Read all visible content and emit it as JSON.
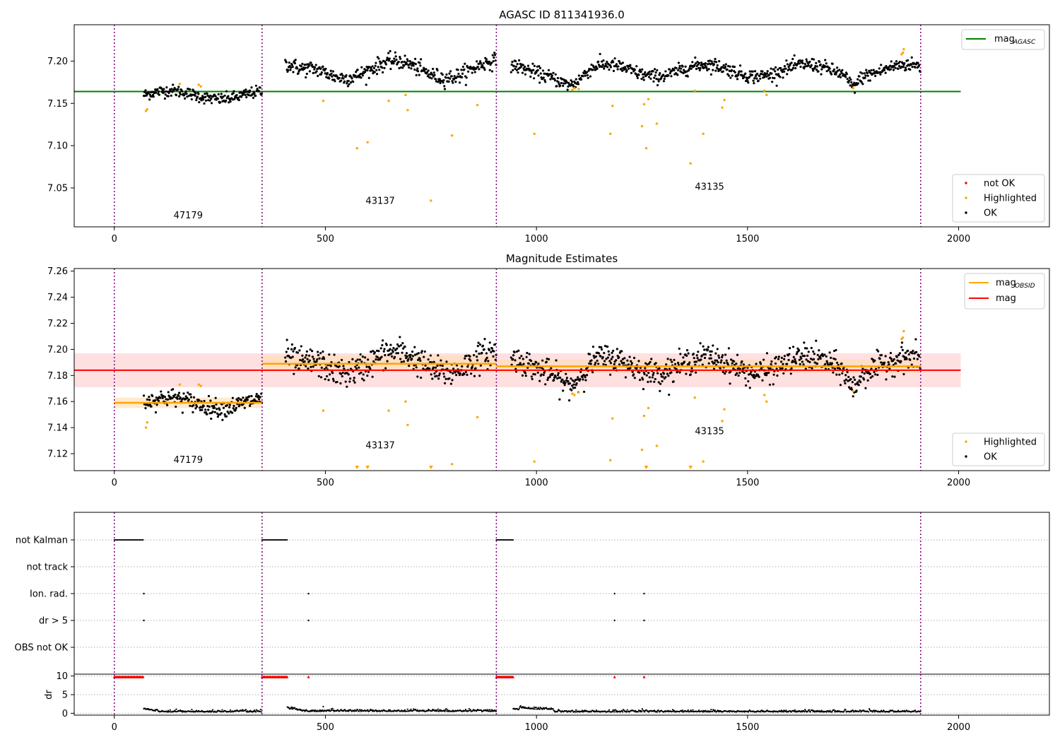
{
  "colors": {
    "ok": "#000000",
    "highlighted": "#ffa500",
    "not_ok": "#ff0000",
    "mag_agasc": "#008000",
    "mag_obsid": "#ffa500",
    "mag": "#ff0000",
    "obsid_boundary": "#800080",
    "band_mag": "#ffcccc",
    "band_obsid": "#ffdcb0"
  },
  "chart_data": [
    {
      "type": "scatter",
      "title": "AGASC ID 811341936.0",
      "xlim": [
        -95,
        2215
      ],
      "ylim": [
        7.004,
        7.243
      ],
      "xticks": [
        0,
        500,
        1000,
        1500,
        2000
      ],
      "yticks": [
        7.05,
        7.1,
        7.15,
        7.2
      ],
      "ytick_labels": [
        "7.05",
        "7.10",
        "7.15",
        "7.20"
      ],
      "legend_lines": [
        {
          "label": "mag",
          "sub": "AGASC",
          "color": "#008000"
        }
      ],
      "legend_points": [
        {
          "label": "not OK",
          "color": "#ff0000"
        },
        {
          "label": "Highlighted",
          "color": "#ffa500"
        },
        {
          "label": "OK",
          "color": "#000000"
        }
      ],
      "obsid_boundaries": [
        0,
        350,
        905,
        1910
      ],
      "obsid_labels": [
        {
          "text": "47179",
          "x": 175,
          "y": 7.014
        },
        {
          "text": "43137",
          "x": 630,
          "y": 7.031
        },
        {
          "text": "43135",
          "x": 1410,
          "y": 7.048
        }
      ],
      "hlines": [
        {
          "y": 7.164,
          "x0": -95,
          "x1": 2005,
          "color": "#008000"
        }
      ],
      "segments": [
        {
          "x0": 70,
          "x1": 350,
          "mean": 7.16,
          "amp": 0.005,
          "noise": 0.0035
        },
        {
          "x0": 405,
          "x1": 905,
          "mean": 7.19,
          "amp": 0.01,
          "noise": 0.0045
        },
        {
          "x0": 940,
          "x1": 1910,
          "mean": 7.189,
          "amp": 0.007,
          "noise": 0.004
        }
      ],
      "dips": [
        {
          "x": 1085,
          "depth": 0.013,
          "width": 35
        },
        {
          "x": 1750,
          "depth": 0.012,
          "width": 15
        },
        {
          "x": 440,
          "depth": 0.008,
          "width": 30
        }
      ],
      "highlighted_points": [
        [
          75,
          7.141
        ],
        [
          78,
          7.143
        ],
        [
          155,
          7.173
        ],
        [
          200,
          7.172
        ],
        [
          205,
          7.17
        ],
        [
          495,
          7.153
        ],
        [
          575,
          7.097
        ],
        [
          600,
          7.104
        ],
        [
          650,
          7.153
        ],
        [
          690,
          7.16
        ],
        [
          695,
          7.142
        ],
        [
          750,
          7.035
        ],
        [
          800,
          7.112
        ],
        [
          860,
          7.148
        ],
        [
          995,
          7.114
        ],
        [
          1085,
          7.166
        ],
        [
          1090,
          7.168
        ],
        [
          1100,
          7.167
        ],
        [
          1175,
          7.114
        ],
        [
          1180,
          7.147
        ],
        [
          1250,
          7.123
        ],
        [
          1255,
          7.149
        ],
        [
          1260,
          7.097
        ],
        [
          1265,
          7.155
        ],
        [
          1285,
          7.126
        ],
        [
          1365,
          7.079
        ],
        [
          1375,
          7.165
        ],
        [
          1395,
          7.114
        ],
        [
          1440,
          7.145
        ],
        [
          1445,
          7.154
        ],
        [
          1540,
          7.165
        ],
        [
          1545,
          7.16
        ],
        [
          1750,
          7.168
        ],
        [
          1865,
          7.208
        ],
        [
          1868,
          7.21
        ],
        [
          1870,
          7.214
        ]
      ]
    },
    {
      "type": "scatter",
      "title": "Magnitude Estimates",
      "xlim": [
        -95,
        2215
      ],
      "ylim": [
        7.107,
        7.262
      ],
      "xticks": [
        0,
        500,
        1000,
        1500,
        2000
      ],
      "yticks": [
        7.12,
        7.14,
        7.16,
        7.18,
        7.2,
        7.22,
        7.24,
        7.26
      ],
      "ytick_labels": [
        "7.12",
        "7.14",
        "7.16",
        "7.18",
        "7.20",
        "7.22",
        "7.24",
        "7.26"
      ],
      "legend_lines": [
        {
          "label": "mag",
          "sub": "OBSID",
          "color": "#ffa500"
        },
        {
          "label": "mag",
          "sub": "",
          "color": "#ff0000"
        }
      ],
      "legend_points": [
        {
          "label": "Highlighted",
          "color": "#ffa500"
        },
        {
          "label": "OK",
          "color": "#000000"
        }
      ],
      "obsid_boundaries": [
        0,
        350,
        905,
        1910
      ],
      "obsid_labels": [
        {
          "text": "47179",
          "x": 175,
          "y": 7.113
        },
        {
          "text": "43137",
          "x": 630,
          "y": 7.124
        },
        {
          "text": "43135",
          "x": 1410,
          "y": 7.135
        }
      ],
      "mag": {
        "y": 7.184,
        "lo": 7.171,
        "hi": 7.197,
        "x0": -95,
        "x1": 2005
      },
      "mag_obsid": [
        {
          "x0": 0,
          "x1": 350,
          "y": 7.159,
          "lo": 7.155,
          "hi": 7.163
        },
        {
          "x0": 350,
          "x1": 905,
          "y": 7.189,
          "lo": 7.183,
          "hi": 7.195
        },
        {
          "x0": 905,
          "x1": 1910,
          "y": 7.187,
          "lo": 7.182,
          "hi": 7.192
        }
      ],
      "segments": [
        {
          "x0": 70,
          "x1": 350,
          "mean": 7.159,
          "amp": 0.004,
          "noise": 0.0035
        },
        {
          "x0": 405,
          "x1": 905,
          "mean": 7.19,
          "amp": 0.008,
          "noise": 0.0055
        },
        {
          "x0": 940,
          "x1": 1910,
          "mean": 7.188,
          "amp": 0.006,
          "noise": 0.005
        }
      ],
      "dips": [
        {
          "x": 1085,
          "depth": 0.012,
          "width": 35
        },
        {
          "x": 1750,
          "depth": 0.012,
          "width": 15
        },
        {
          "x": 440,
          "depth": 0.008,
          "width": 30
        }
      ],
      "highlighted_points": [
        [
          75,
          7.14
        ],
        [
          78,
          7.144
        ],
        [
          155,
          7.173
        ],
        [
          200,
          7.173
        ],
        [
          205,
          7.172
        ],
        [
          495,
          7.153
        ],
        [
          650,
          7.153
        ],
        [
          690,
          7.16
        ],
        [
          695,
          7.142
        ],
        [
          800,
          7.112
        ],
        [
          860,
          7.148
        ],
        [
          995,
          7.114
        ],
        [
          1085,
          7.166
        ],
        [
          1090,
          7.165
        ],
        [
          1100,
          7.167
        ],
        [
          1180,
          7.147
        ],
        [
          1175,
          7.115
        ],
        [
          1250,
          7.123
        ],
        [
          1255,
          7.149
        ],
        [
          1265,
          7.155
        ],
        [
          1285,
          7.126
        ],
        [
          1375,
          7.163
        ],
        [
          1395,
          7.114
        ],
        [
          1440,
          7.145
        ],
        [
          1445,
          7.154
        ],
        [
          1540,
          7.165
        ],
        [
          1545,
          7.16
        ],
        [
          1750,
          7.168
        ],
        [
          1865,
          7.208
        ],
        [
          1868,
          7.209
        ],
        [
          1870,
          7.214
        ]
      ],
      "clipped_points": [
        575,
        600,
        750,
        1260,
        1365
      ]
    },
    {
      "type": "scatter",
      "title": "",
      "xlim": [
        -95,
        2215
      ],
      "xticks": [
        0,
        500,
        1000,
        1500,
        2000
      ],
      "flag_rows": [
        "not Kalman",
        "not track",
        "Ion. rad.",
        "dr > 5",
        "OBS not OK"
      ],
      "obsid_boundaries": [
        0,
        350,
        905,
        1910
      ],
      "flags": {
        "not Kalman": [
          [
            0,
            70
          ],
          [
            350,
            410
          ],
          [
            905,
            945
          ]
        ],
        "not track": [],
        "Ion. rad.": [
          70,
          460,
          1185,
          1255
        ],
        "dr > 5": [
          70,
          460,
          1185,
          1255
        ],
        "OBS not OK": []
      }
    },
    {
      "type": "scatter",
      "title": "",
      "xlim": [
        -95,
        2215
      ],
      "ylim": [
        -0.5,
        10.5
      ],
      "xticks": [
        0,
        500,
        1000,
        1500,
        2000
      ],
      "yticks": [
        0,
        5,
        10
      ],
      "ylabel": "dr",
      "dr_clipped_ranges": [
        [
          0,
          70
        ],
        [
          350,
          410
        ],
        [
          905,
          945
        ]
      ],
      "dr_clipped_points": [
        460,
        1185,
        1255
      ],
      "dr_segments": [
        {
          "x0": 70,
          "x1": 350,
          "level": 0.35
        },
        {
          "x0": 410,
          "x1": 905,
          "level": 0.5
        },
        {
          "x0": 945,
          "x1": 1910,
          "level": 0.35
        }
      ]
    }
  ]
}
